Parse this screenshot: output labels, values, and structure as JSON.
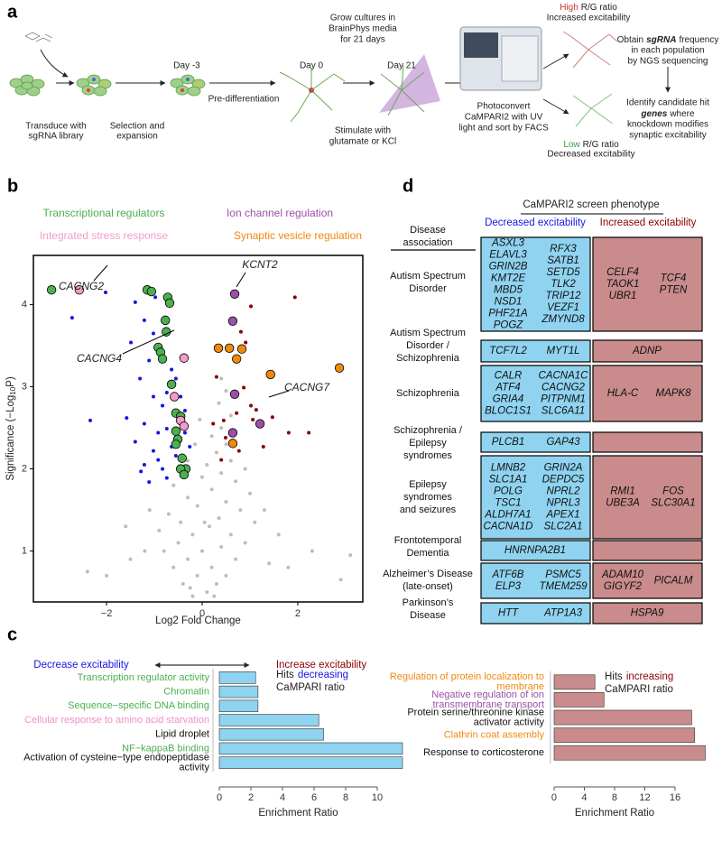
{
  "panel_labels": [
    "a",
    "b",
    "c",
    "d"
  ],
  "workflow": {
    "transduce": [
      "Transduce with",
      "sgRNA library"
    ],
    "selection": [
      "Selection and",
      "expansion"
    ],
    "day_minus3": "Day -3",
    "pre_differentiation": "Pre-differentiation",
    "day0": "Day 0",
    "grow": [
      "Grow cultures in",
      "BrainPhys media",
      "for 21 days"
    ],
    "day21": "Day 21",
    "stimulate": [
      "Stimulate with",
      "glutamate or KCl"
    ],
    "photoconvert": [
      "Photoconvert",
      "CaMPARI2 with UV",
      "light and sort by FACS"
    ],
    "high": {
      "level": "High",
      "ratio": "R/G ratio",
      "outcome": "Increased excitability"
    },
    "low": {
      "level": "Low",
      "ratio": "R/G ratio",
      "outcome": "Decreased excitability"
    },
    "obtain": [
      [
        "Obtain",
        "sgRNA",
        "frequency"
      ],
      "in each population",
      "by NGS sequencing"
    ],
    "identify": [
      "Identify candidate hit",
      [
        "genes",
        "where"
      ],
      "knockdown modifies",
      "synaptic excitability"
    ]
  },
  "chart_data": [
    {
      "type": "scatter",
      "x_label": "Log2 Fold Change",
      "y_label": [
        "Significance (−Log",
        "10",
        "P)"
      ],
      "xlim": [
        -3.53,
        3.36
      ],
      "ylim": [
        0.38,
        4.6
      ],
      "xticks": [
        {
          "value": -2,
          "label": "−2"
        },
        0,
        2
      ],
      "yticks": [
        1,
        2,
        3,
        4
      ],
      "series": [
        {
          "color": "#bdbdbd",
          "x": [
            -0.2,
            0.1,
            -0.4,
            0.3,
            -0.1,
            0.5,
            -0.6,
            0.2,
            -0.3,
            0.7,
            -0.8,
            0.0,
            0.4,
            -0.5,
            0.9,
            -0.2,
            0.6,
            -0.9,
            0.15,
            -0.45,
            1.1,
            0.35,
            -0.7,
            0.8,
            -0.1,
            0.5,
            -0.3,
            1.0,
            0.2,
            -0.6,
            0.7,
            0.0,
            0.4,
            0.9,
            0.1,
            0.6,
            0.3,
            0.5,
            0.2,
            0.4,
            0.6,
            0.35,
            0.5,
            0.4,
            -1.2,
            -1.5,
            -2.0,
            -2.4,
            1.4,
            1.8,
            2.3,
            3.1,
            2.9,
            -1.1,
            1.3,
            -0.3,
            -0.15,
            -0.05,
            0.05,
            -0.25,
            0.25,
            -1.6,
            1.6
          ],
          "values": [
            0.45,
            0.5,
            0.6,
            0.6,
            0.7,
            0.7,
            0.8,
            0.8,
            0.9,
            0.9,
            1.0,
            1.0,
            1.05,
            1.1,
            1.1,
            1.2,
            1.2,
            1.25,
            1.3,
            1.35,
            1.35,
            1.4,
            1.45,
            1.5,
            1.55,
            1.6,
            1.65,
            1.7,
            1.75,
            1.8,
            1.85,
            1.9,
            1.95,
            2.0,
            2.05,
            2.1,
            2.2,
            2.3,
            2.4,
            2.5,
            2.65,
            2.8,
            2.95,
            3.1,
            1.0,
            0.9,
            0.7,
            0.75,
            0.85,
            0.8,
            1.0,
            0.95,
            0.65,
            1.5,
            1.5,
            2.1,
            2.3,
            2.6,
            1.35,
            0.55,
            0.45,
            1.3,
            1.2
          ]
        },
        {
          "color": "#1515e6",
          "x": [
            -2.02,
            -2.72,
            -0.98,
            -1.4,
            -1.21,
            -1.02,
            -1.49,
            -1.11,
            -0.64,
            -1.3,
            -1.02,
            -0.83,
            -2.34,
            -1.58,
            -1.21,
            -0.92,
            -0.74,
            -1.4,
            -1.02,
            -0.64,
            -1.21,
            -1.28,
            -0.83,
            -0.55,
            -0.74,
            -0.45,
            -0.36,
            -0.55,
            -0.74,
            -0.36,
            -0.26,
            -0.92,
            -1.11
          ],
          "values": [
            4.15,
            3.84,
            4.09,
            4.03,
            3.81,
            3.65,
            3.54,
            3.32,
            3.21,
            3.1,
            2.88,
            2.77,
            2.59,
            2.62,
            2.55,
            2.44,
            2.49,
            2.33,
            2.22,
            2.27,
            2.05,
            1.97,
            2.0,
            2.16,
            1.89,
            2.88,
            2.71,
            3.1,
            2.93,
            2.44,
            2.27,
            2.11,
            1.84
          ]
        },
        {
          "color": "#8b0000",
          "x": [
            1.94,
            1.02,
            0.81,
            0.91,
            0.3,
            0.87,
            1.02,
            0.72,
            1.06,
            0.45,
            1.47,
            0.23,
            0.49,
            0.77,
            1.81,
            2.23,
            1.28,
            0.4,
            1.13
          ],
          "values": [
            4.09,
            3.98,
            3.67,
            3.54,
            3.12,
            2.99,
            2.77,
            2.68,
            2.6,
            2.59,
            2.63,
            2.55,
            2.38,
            2.22,
            2.44,
            2.44,
            2.27,
            2.11,
            2.72
          ]
        },
        {
          "name": "Transcriptional regulators",
          "color": "#4caf50",
          "x": [
            -3.15,
            -1.15,
            -1.06,
            -0.72,
            -0.68,
            -0.77,
            -0.75,
            -0.92,
            -0.87,
            -0.83,
            -0.64,
            -0.55,
            -0.45,
            -0.55,
            -0.51,
            -0.55,
            -0.42,
            -0.34,
            -0.45,
            -0.38
          ],
          "values": [
            4.18,
            4.18,
            4.16,
            4.09,
            4.02,
            3.81,
            3.67,
            3.48,
            3.42,
            3.34,
            3.03,
            2.68,
            2.64,
            2.46,
            2.36,
            2.3,
            2.13,
            2.0,
            2.0,
            1.93
          ]
        },
        {
          "name": "Ion channel regulation",
          "color": "#9c4fa8",
          "x": [
            0.68,
            0.64,
            0.68,
            1.21,
            0.64
          ],
          "values": [
            4.13,
            3.8,
            2.91,
            2.55,
            2.44
          ]
        },
        {
          "name": "Integrated stress response",
          "color": "#f39bc8",
          "x": [
            -2.57,
            -0.38,
            -0.58,
            -0.45,
            -0.38
          ],
          "values": [
            4.18,
            3.35,
            2.88,
            2.59,
            2.52
          ]
        },
        {
          "name": "Synaptic vesicle regulation",
          "color": "#f0890f",
          "x": [
            0.34,
            0.57,
            0.83,
            0.72,
            1.43,
            2.87,
            0.64
          ],
          "values": [
            3.47,
            3.47,
            3.46,
            3.34,
            3.15,
            3.23,
            2.31
          ]
        }
      ],
      "annotations": [
        "CACNG2",
        "CACNG4",
        "KCNT2",
        "CACNG7"
      ],
      "direction_labels": [
        {
          "text": "Decrease excitability",
          "color": "#1515e6"
        },
        {
          "text": "Increase excitability",
          "color": "#8b0000"
        }
      ]
    },
    {
      "type": "hbar",
      "categories": [
        "Transcription regulator activity",
        "Chromatin",
        "Sequence−specific DNA binding",
        "Cellular response to amino acid starvation",
        "Lipid droplet",
        "NF−kappaB binding",
        [
          "Activation of cysteine−type endopeptidase",
          "activity"
        ]
      ],
      "label_colors": [
        "#4caf50",
        "#4caf50",
        "#4caf50",
        "#f08fc8",
        "#111111",
        "#4caf50",
        "#111111"
      ],
      "values": [
        2.3,
        2.45,
        2.45,
        6.3,
        6.6,
        11.6,
        11.6
      ],
      "color": "#8fd3f0",
      "xlim": [
        -0.4,
        11.8
      ],
      "xticks": [
        0,
        2,
        4,
        6,
        8,
        10
      ],
      "x_label": "Enrichment Ratio",
      "legend": {
        "lines": [
          [
            "Hits",
            "decreasing"
          ],
          [
            "CaMPARI ratio"
          ]
        ],
        "highlight_color": "#1515e6"
      }
    },
    {
      "type": "hbar",
      "categories": [
        [
          "Regulation of protein localization to",
          "membrane"
        ],
        [
          "Negative regulation of ion",
          "transmembrane transport"
        ],
        [
          "Protein serine/threonine kinase",
          "activator activity"
        ],
        "Clathrin coat assembly",
        "Response to corticosterone"
      ],
      "label_colors": [
        "#f0890f",
        "#9c4fa8",
        "#111111",
        "#f0890f",
        "#111111"
      ],
      "values": [
        5.4,
        6.6,
        18.2,
        18.6,
        20
      ],
      "color": "#c98b8b",
      "xlim": [
        -0.5,
        20.3
      ],
      "xticks": [
        0,
        4,
        8,
        12,
        16
      ],
      "x_label": "Enrichment Ratio",
      "legend": {
        "lines": [
          [
            "Hits",
            "increasing"
          ],
          [
            "CaMPARI ratio"
          ]
        ],
        "highlight_color": "#8b0000"
      }
    }
  ],
  "table": {
    "title": "CaMPARI2 screen phenotype",
    "disease_header": [
      "Disease",
      "association"
    ],
    "decreased_header": "Decreased excitability",
    "increased_header": "Increased excitability",
    "rows": [
      {
        "disease": [
          "Autism Spectrum",
          "Disorder"
        ],
        "decreased": [
          [
            "ASXL3",
            "ELAVL3",
            "GRIN2B",
            "KMT2E",
            "MBD5",
            "NSD1",
            "PHF21A",
            "POGZ"
          ],
          [
            "RFX3",
            "SATB1",
            "SETD5",
            "TLK2",
            "TRIP12",
            "VEZF1",
            "ZMYND8"
          ]
        ],
        "increased": [
          [
            "CELF4",
            "TAOK1",
            "UBR1"
          ],
          [
            "TCF4",
            "PTEN"
          ]
        ]
      },
      {
        "disease": [
          "Autism Spectrum",
          "Disorder /",
          "Schizophrenia"
        ],
        "decreased": [
          [
            "TCF7L2"
          ],
          [
            "MYT1L"
          ]
        ],
        "increased": [
          [
            "ADNP"
          ]
        ]
      },
      {
        "disease": [
          "Schizophrenia"
        ],
        "decreased": [
          [
            "CALR",
            "ATF4",
            "GRIA4",
            "BLOC1S1"
          ],
          [
            "CACNA1C",
            "CACNG2",
            "PITPNM1",
            "SLC6A11"
          ]
        ],
        "increased": [
          [
            "HLA-C"
          ],
          [
            "MAPK8"
          ]
        ]
      },
      {
        "disease": [
          "Schizophrenia /",
          "Epilepsy",
          "syndromes"
        ],
        "decreased": [
          [
            "PLCB1"
          ],
          [
            "GAP43"
          ]
        ],
        "increased": []
      },
      {
        "disease": [
          "Epilepsy",
          "syndromes",
          "and seizures"
        ],
        "decreased": [
          [
            "LMNB2",
            "SLC1A1",
            "POLG",
            "TSC1",
            "ALDH7A1",
            "CACNA1D"
          ],
          [
            "GRIN2A",
            "DEPDC5",
            "NPRL2",
            "NPRL3",
            "APEX1",
            "SLC2A1"
          ]
        ],
        "increased": [
          [
            "RMI1",
            "UBE3A"
          ],
          [
            "FOS",
            "SLC30A1"
          ]
        ]
      },
      {
        "disease": [
          "Frontotemporal",
          "Dementia"
        ],
        "decreased": [
          [
            "HNRNPA2B1"
          ]
        ],
        "increased": []
      },
      {
        "disease": [
          "Alzheimer’s Disease",
          "(late-onset)"
        ],
        "decreased": [
          [
            "ATF6B",
            "ELP3"
          ],
          [
            "PSMC5",
            "TMEM259"
          ]
        ],
        "increased": [
          [
            "ADAM10",
            "GIGYF2"
          ],
          [
            "PICALM"
          ]
        ]
      },
      {
        "disease": [
          "Parkinson’s",
          "Disease"
        ],
        "decreased": [
          [
            "HTT"
          ],
          [
            "ATP1A3"
          ]
        ],
        "increased": [
          [
            "HSPA9"
          ]
        ]
      }
    ]
  }
}
